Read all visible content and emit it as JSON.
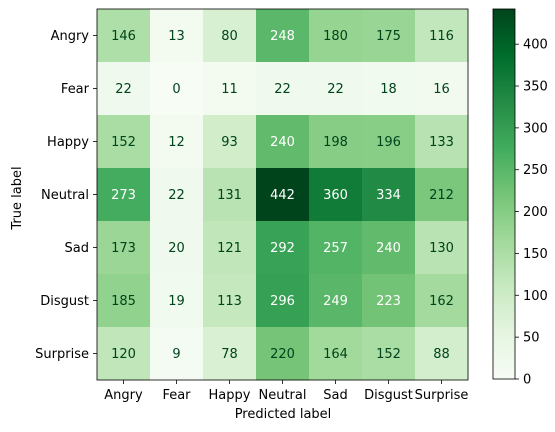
{
  "chart_data": {
    "type": "heatmap",
    "title": "",
    "xlabel": "Predicted label",
    "ylabel": "True label",
    "x_categories": [
      "Angry",
      "Fear",
      "Happy",
      "Neutral",
      "Sad",
      "Disgust",
      "Surprise"
    ],
    "y_categories": [
      "Angry",
      "Fear",
      "Happy",
      "Neutral",
      "Sad",
      "Disgust",
      "Surprise"
    ],
    "values": [
      [
        146,
        13,
        80,
        248,
        180,
        175,
        116
      ],
      [
        22,
        0,
        11,
        22,
        22,
        18,
        16
      ],
      [
        152,
        12,
        93,
        240,
        198,
        196,
        133
      ],
      [
        273,
        22,
        131,
        442,
        360,
        334,
        212
      ],
      [
        173,
        20,
        121,
        292,
        257,
        240,
        130
      ],
      [
        185,
        19,
        113,
        296,
        249,
        223,
        162
      ],
      [
        120,
        9,
        78,
        220,
        164,
        152,
        88
      ]
    ],
    "colormap": "Greens",
    "color_range": [
      0,
      442
    ],
    "colorbar": {
      "ticks": [
        0,
        50,
        100,
        150,
        200,
        250,
        300,
        350,
        400
      ]
    },
    "grid": false,
    "text_color_light": "#ffffff",
    "text_color_dark": "#00441b"
  }
}
